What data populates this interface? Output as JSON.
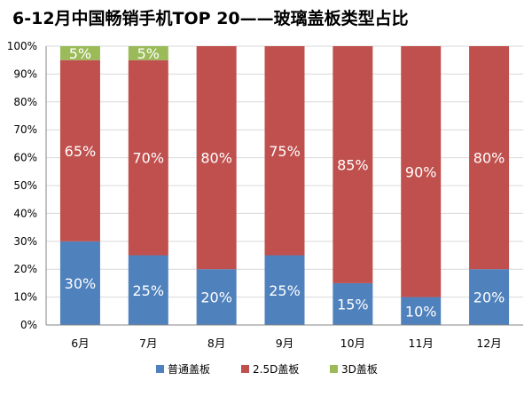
{
  "chart_data": {
    "type": "bar",
    "stacked": true,
    "title": "6-12月中国畅销手机TOP 20——玻璃盖板类型占比",
    "xlabel": "",
    "ylabel": "",
    "categories": [
      "6月",
      "7月",
      "8月",
      "9月",
      "10月",
      "11月",
      "12月"
    ],
    "ylim": [
      0,
      100
    ],
    "ytick_labels": [
      "0%",
      "10%",
      "20%",
      "30%",
      "40%",
      "50%",
      "60%",
      "70%",
      "80%",
      "90%",
      "100%"
    ],
    "grid": true,
    "legend_position": "bottom",
    "series": [
      {
        "name": "普通盖板",
        "color": "#4F81BD",
        "values": [
          30,
          25,
          20,
          25,
          15,
          10,
          20
        ],
        "labels": [
          "30%",
          "25%",
          "20%",
          "25%",
          "15%",
          "10%",
          "20%"
        ]
      },
      {
        "name": "2.5D盖板",
        "color": "#C0504D",
        "values": [
          65,
          70,
          80,
          75,
          85,
          90,
          80
        ],
        "labels": [
          "65%",
          "70%",
          "80%",
          "75%",
          "85%",
          "90%",
          "80%"
        ]
      },
      {
        "name": "3D盖板",
        "color": "#9BBB59",
        "values": [
          5,
          5,
          0,
          0,
          0,
          0,
          0
        ],
        "labels": [
          "5%",
          "5%",
          "",
          "",
          "",
          "",
          ""
        ]
      }
    ]
  }
}
